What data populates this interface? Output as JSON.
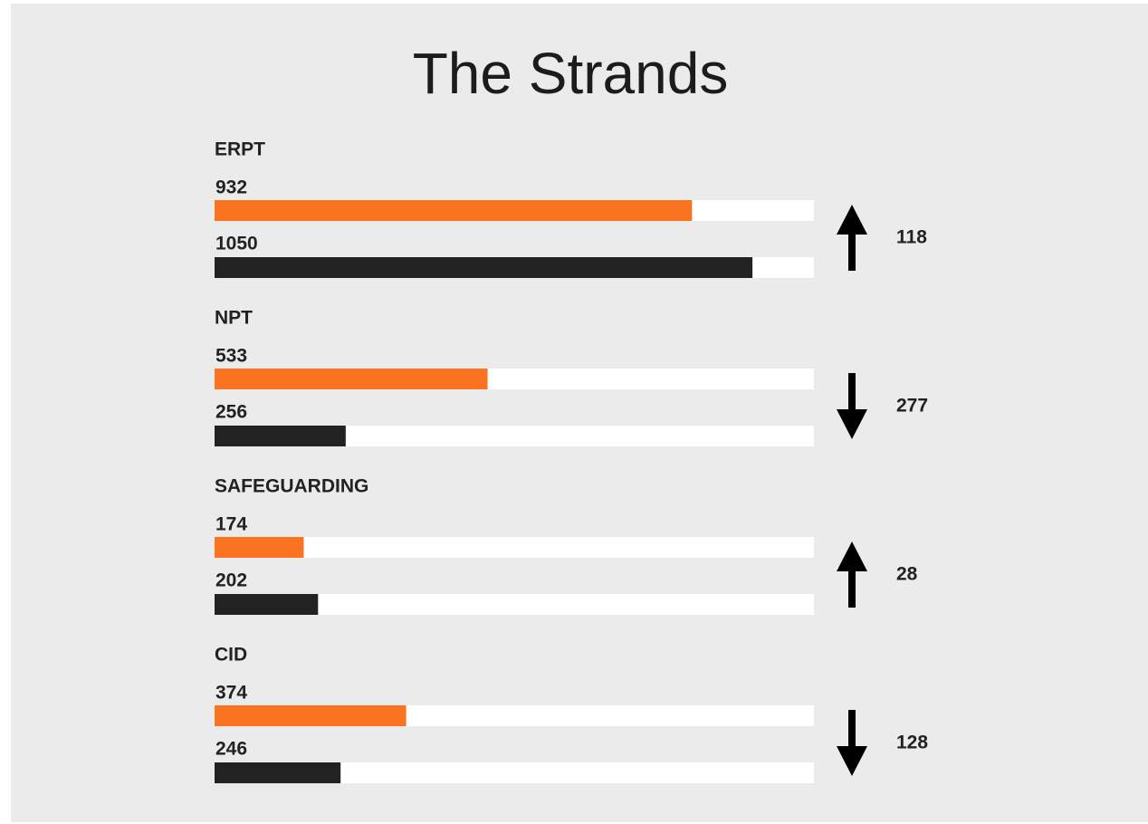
{
  "chart_data": {
    "type": "bar",
    "title": "The Strands",
    "categories": [
      "ERPT",
      "NPT",
      "SAFEGUARDING",
      "CID"
    ],
    "series": [
      {
        "color": "#f97320",
        "values": [
          932,
          533,
          174,
          374
        ]
      },
      {
        "color": "#222222",
        "values": [
          1050,
          256,
          202,
          246
        ]
      }
    ],
    "changes": [
      118,
      277,
      28,
      128
    ],
    "xlim": [
      0,
      1170
    ],
    "track_color": "#ffffff",
    "arrow_color": "#000000"
  }
}
